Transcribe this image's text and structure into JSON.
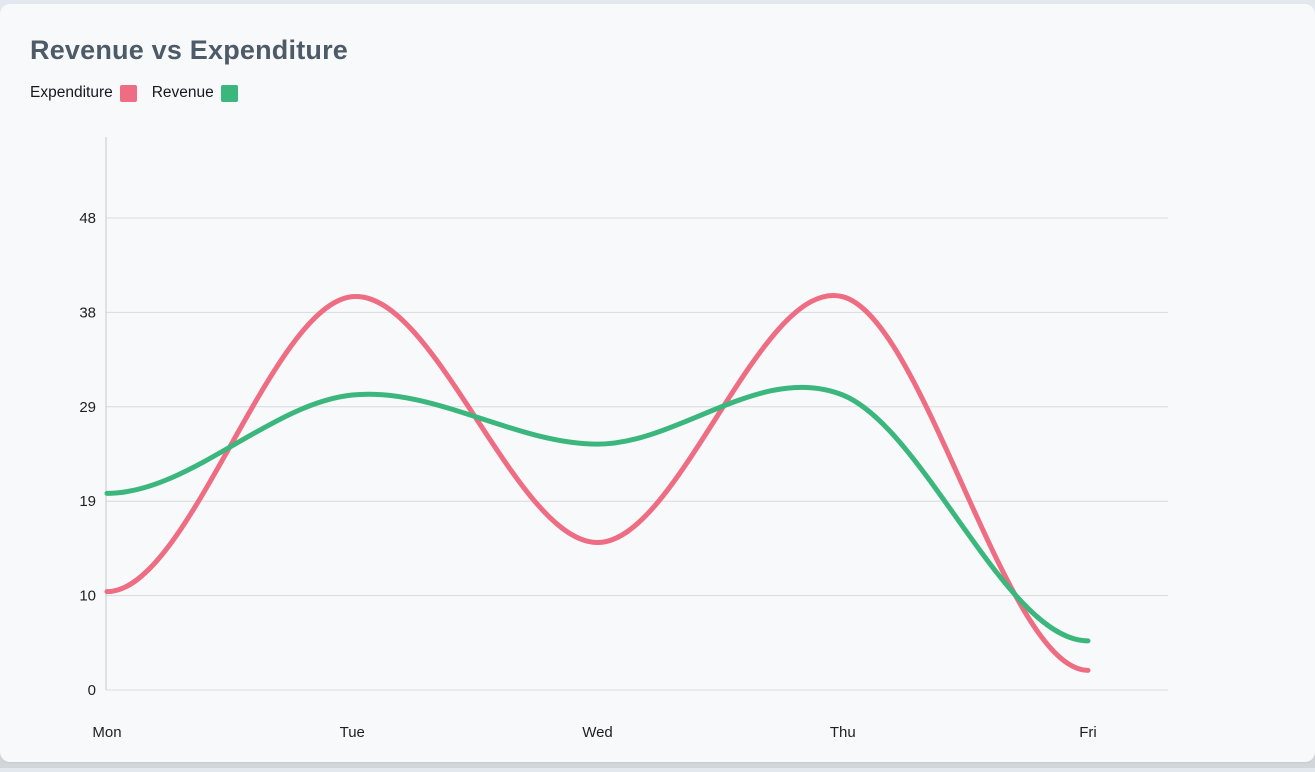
{
  "header": {
    "title": "Revenue vs Expenditure"
  },
  "legend": {
    "items": [
      {
        "label": "Expenditure",
        "color": "#ee6d83"
      },
      {
        "label": "Revenue",
        "color": "#3bb77d"
      }
    ]
  },
  "chart_data": {
    "type": "line",
    "curve": "spline",
    "title": "Revenue vs Expenditure",
    "categories": [
      "Mon",
      "Tue",
      "Wed",
      "Thu",
      "Fri"
    ],
    "series": [
      {
        "name": "Expenditure",
        "color": "#ee6d83",
        "values": [
          10,
          40,
          15,
          40,
          2
        ]
      },
      {
        "name": "Revenue",
        "color": "#3bb77d",
        "values": [
          20,
          30,
          25,
          30,
          5
        ]
      }
    ],
    "xlabel": "",
    "ylabel": "",
    "ylim": [
      0,
      48
    ],
    "y_tick_labels": [
      "0",
      "10",
      "19",
      "29",
      "38",
      "48"
    ],
    "grid": "horizontal",
    "legend_position": "top-left",
    "line_width": 5
  }
}
